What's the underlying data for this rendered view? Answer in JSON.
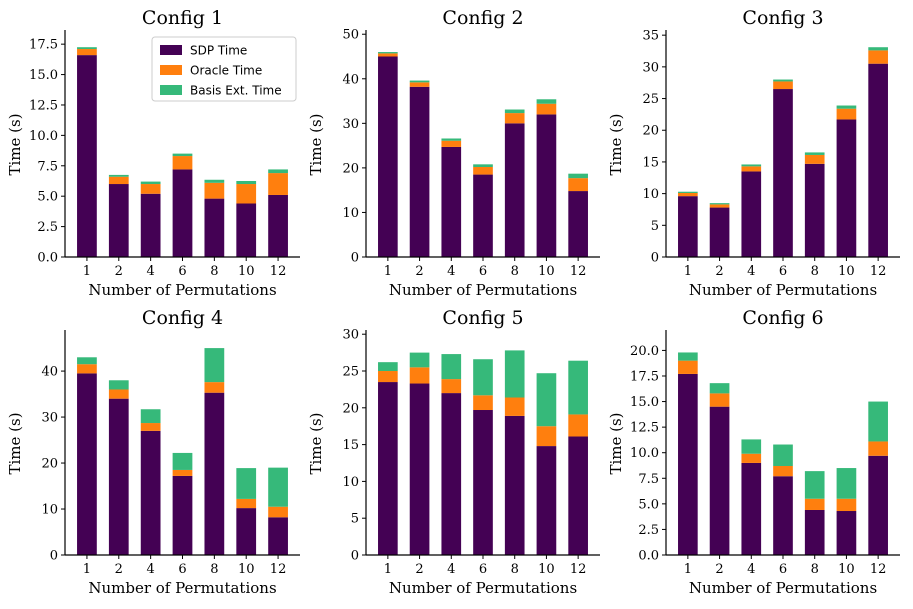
{
  "chart_data": {
    "type": "bar",
    "stacked": true,
    "colors": {
      "SDP Time": "#440154",
      "Oracle Time": "#ff7f0e",
      "Basis Ext. Time": "#36b97a"
    },
    "legend": {
      "entries": [
        "SDP Time",
        "Oracle Time",
        "Basis Ext. Time"
      ],
      "position": "top-right",
      "in_panel": 0
    },
    "panels": [
      {
        "title": "Config 1",
        "xlabel": "Number of Permutations",
        "ylabel": "Time (s)",
        "categories": [
          "1",
          "2",
          "4",
          "6",
          "8",
          "10",
          "12"
        ],
        "ylim": [
          0,
          18.5
        ],
        "yticks": [
          "0.0",
          "2.5",
          "5.0",
          "7.5",
          "10.0",
          "12.5",
          "15.0",
          "17.5"
        ],
        "ytick_values": [
          0,
          2.5,
          5,
          7.5,
          10,
          12.5,
          15,
          17.5
        ],
        "series": [
          {
            "name": "SDP Time",
            "values": [
              16.6,
              6.0,
              5.2,
              7.2,
              4.8,
              4.4,
              5.1
            ]
          },
          {
            "name": "Oracle Time",
            "values": [
              0.5,
              0.6,
              0.8,
              1.1,
              1.3,
              1.6,
              1.8
            ]
          },
          {
            "name": "Basis Ext. Time",
            "values": [
              0.15,
              0.15,
              0.2,
              0.2,
              0.25,
              0.25,
              0.3
            ]
          }
        ]
      },
      {
        "title": "Config 2",
        "xlabel": "Number of Permutations",
        "ylabel": "Time (s)",
        "categories": [
          "1",
          "2",
          "4",
          "6",
          "8",
          "10",
          "12"
        ],
        "ylim": [
          0,
          50.5
        ],
        "yticks": [
          "0",
          "10",
          "20",
          "30",
          "40",
          "50"
        ],
        "ytick_values": [
          0,
          10,
          20,
          30,
          40,
          50
        ],
        "series": [
          {
            "name": "SDP Time",
            "values": [
              45.0,
              38.2,
              24.7,
              18.5,
              30.0,
              32.0,
              14.8
            ]
          },
          {
            "name": "Oracle Time",
            "values": [
              0.7,
              1.0,
              1.4,
              1.7,
              2.3,
              2.4,
              2.9
            ]
          },
          {
            "name": "Basis Ext. Time",
            "values": [
              0.3,
              0.4,
              0.5,
              0.6,
              0.8,
              1.0,
              1.0
            ]
          }
        ]
      },
      {
        "title": "Config 3",
        "xlabel": "Number of Permutations",
        "ylabel": "Time (s)",
        "categories": [
          "1",
          "2",
          "4",
          "6",
          "8",
          "10",
          "12"
        ],
        "ylim": [
          0,
          35.5
        ],
        "yticks": [
          "0",
          "5",
          "10",
          "15",
          "20",
          "25",
          "30",
          "35"
        ],
        "ytick_values": [
          0,
          5,
          10,
          15,
          20,
          25,
          30,
          35
        ],
        "series": [
          {
            "name": "SDP Time",
            "values": [
              9.6,
              7.8,
              13.5,
              26.5,
              14.7,
              21.7,
              30.5
            ]
          },
          {
            "name": "Oracle Time",
            "values": [
              0.5,
              0.5,
              0.8,
              1.2,
              1.4,
              1.7,
              2.1
            ]
          },
          {
            "name": "Basis Ext. Time",
            "values": [
              0.2,
              0.2,
              0.3,
              0.3,
              0.4,
              0.5,
              0.5
            ]
          }
        ]
      },
      {
        "title": "Config 4",
        "xlabel": "Number of Permutations",
        "ylabel": "Time (s)",
        "categories": [
          "1",
          "2",
          "4",
          "6",
          "8",
          "10",
          "12"
        ],
        "ylim": [
          0,
          48.5
        ],
        "yticks": [
          "0",
          "10",
          "20",
          "30",
          "40"
        ],
        "ytick_values": [
          0,
          10,
          20,
          30,
          40
        ],
        "series": [
          {
            "name": "SDP Time",
            "values": [
              39.5,
              34.0,
              27.0,
              17.2,
              35.3,
              10.2,
              8.2
            ]
          },
          {
            "name": "Oracle Time",
            "values": [
              2.0,
              2.0,
              1.7,
              1.3,
              2.3,
              2.0,
              2.3
            ]
          },
          {
            "name": "Basis Ext. Time",
            "values": [
              1.5,
              2.0,
              3.0,
              3.7,
              7.4,
              6.7,
              8.5
            ]
          }
        ]
      },
      {
        "title": "Config 5",
        "xlabel": "Number of Permutations",
        "ylabel": "Time (s)",
        "categories": [
          "1",
          "2",
          "4",
          "6",
          "8",
          "10",
          "12"
        ],
        "ylim": [
          0,
          30.3
        ],
        "yticks": [
          "0",
          "5",
          "10",
          "15",
          "20",
          "25",
          "30"
        ],
        "ytick_values": [
          0,
          5,
          10,
          15,
          20,
          25,
          30
        ],
        "series": [
          {
            "name": "SDP Time",
            "values": [
              23.5,
              23.3,
              22.0,
              19.7,
              18.9,
              14.8,
              16.1
            ]
          },
          {
            "name": "Oracle Time",
            "values": [
              1.5,
              2.2,
              1.9,
              2.0,
              2.5,
              2.7,
              3.0
            ]
          },
          {
            "name": "Basis Ext. Time",
            "values": [
              1.2,
              2.0,
              3.4,
              4.9,
              6.4,
              7.2,
              7.3
            ]
          }
        ]
      },
      {
        "title": "Config 6",
        "xlabel": "Number of Permutations",
        "ylabel": "Time (s)",
        "categories": [
          "1",
          "2",
          "4",
          "6",
          "8",
          "10",
          "12"
        ],
        "ylim": [
          0,
          21.8
        ],
        "yticks": [
          "0.0",
          "2.5",
          "5.0",
          "7.5",
          "10.0",
          "12.5",
          "15.0",
          "17.5",
          "20.0"
        ],
        "ytick_values": [
          0,
          2.5,
          5,
          7.5,
          10,
          12.5,
          15,
          17.5,
          20
        ],
        "series": [
          {
            "name": "SDP Time",
            "values": [
              17.7,
              14.5,
              9.0,
              7.7,
              4.4,
              4.3,
              9.7
            ]
          },
          {
            "name": "Oracle Time",
            "values": [
              1.3,
              1.3,
              0.9,
              1.0,
              1.1,
              1.2,
              1.4
            ]
          },
          {
            "name": "Basis Ext. Time",
            "values": [
              0.8,
              1.0,
              1.4,
              2.1,
              2.7,
              3.0,
              3.9
            ]
          }
        ]
      }
    ]
  }
}
